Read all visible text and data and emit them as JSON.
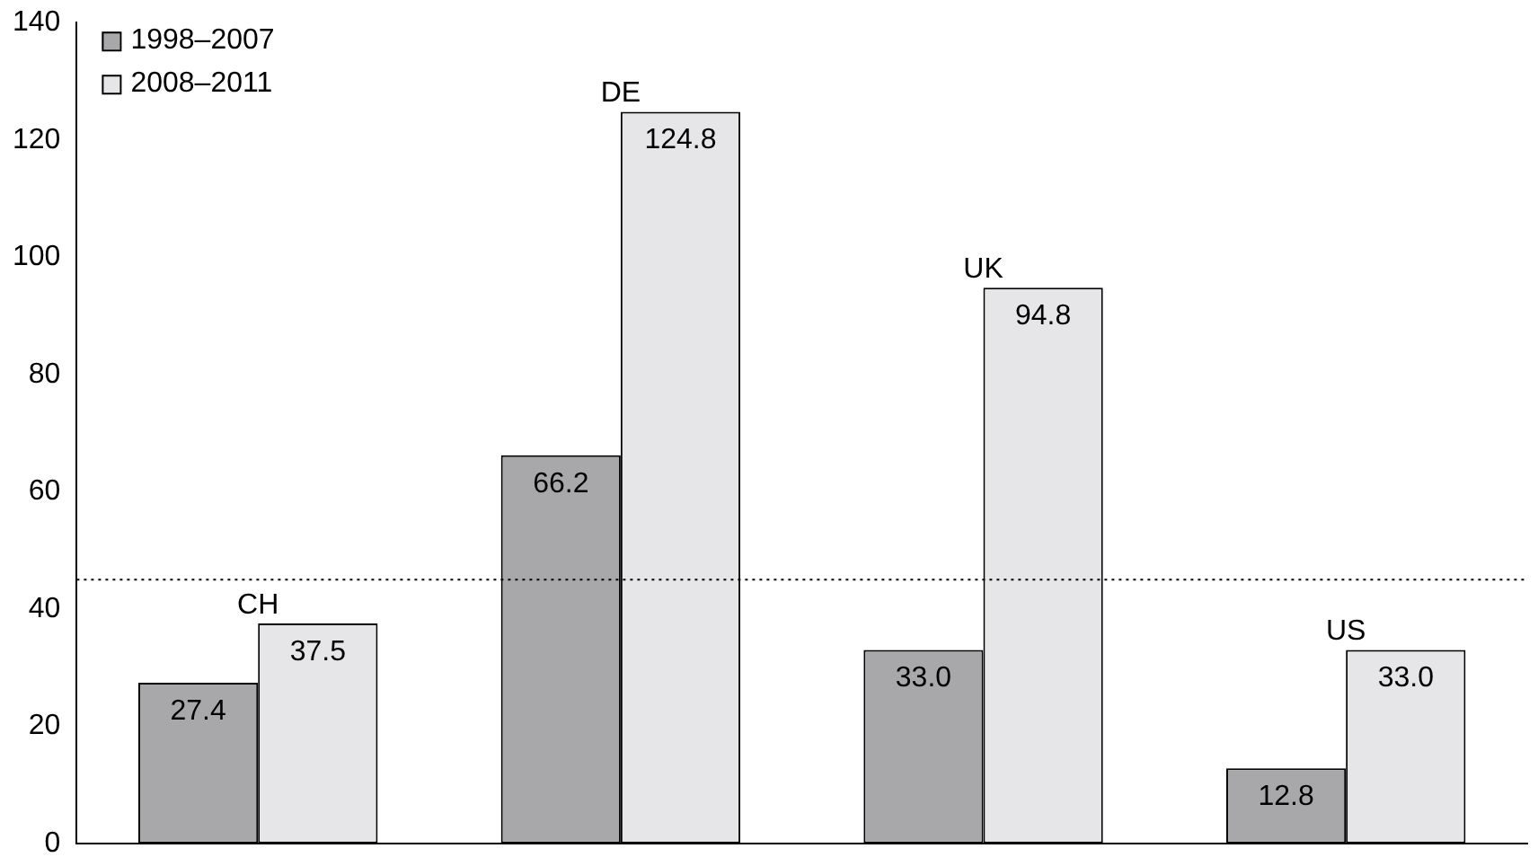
{
  "chart_data": {
    "type": "bar",
    "categories": [
      "CH",
      "DE",
      "UK",
      "US"
    ],
    "series": [
      {
        "name": "1998–2007",
        "color": "#a8a8aa",
        "values": [
          27.4,
          66.2,
          33.0,
          12.8
        ],
        "value_labels": [
          "27.4",
          "66.2",
          "33.0",
          "12.8"
        ]
      },
      {
        "name": "2008–2011",
        "color": "#e6e6e8",
        "values": [
          37.5,
          124.8,
          94.8,
          33.0
        ],
        "value_labels": [
          "37.5",
          "124.8",
          "94.8",
          "33.0"
        ]
      }
    ],
    "ylim": [
      0,
      140
    ],
    "yticks": [
      0,
      20,
      40,
      60,
      80,
      100,
      120,
      140
    ],
    "grid": false,
    "legend": "top left",
    "ref_lines": [
      {
        "axis": "y",
        "value": 45,
        "color": "#000000",
        "line_style": "dotted"
      }
    ]
  }
}
